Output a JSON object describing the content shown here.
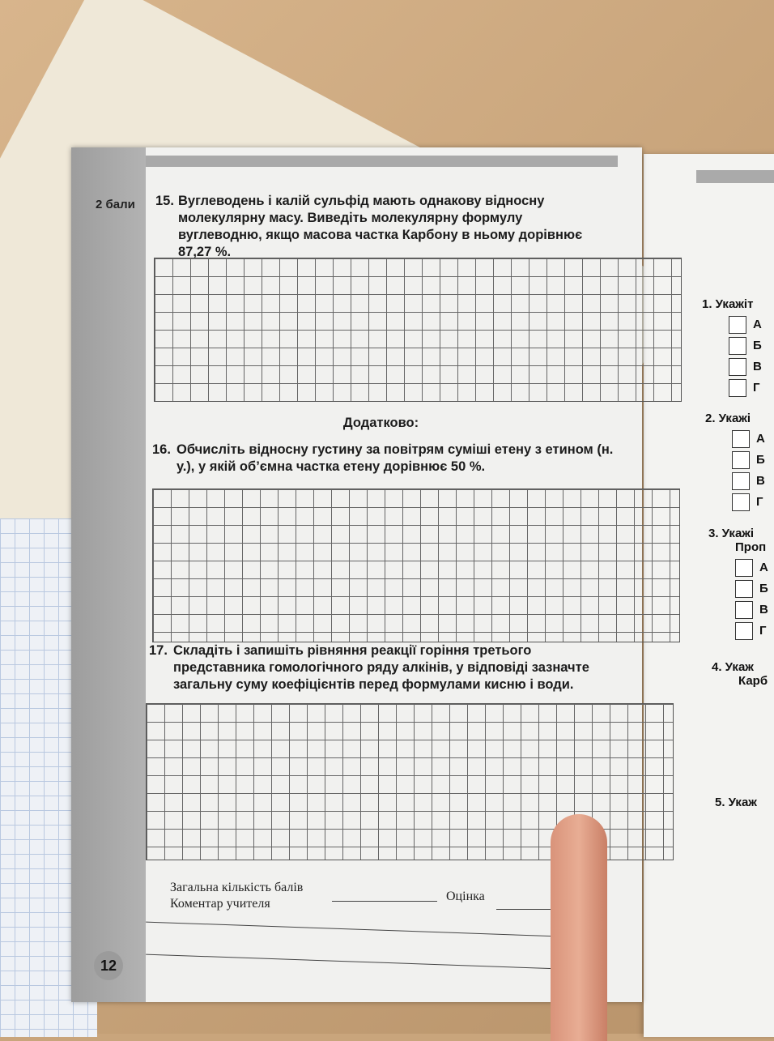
{
  "page": {
    "points_label": "2 бали",
    "q15": {
      "number": "15.",
      "text": "Вуглеводень і калій сульфід мають однакову відносну молекулярну масу. Виведіть молекулярну формулу вуглеводню, якщо масова частка Карбону в ньому дорівнює 87,27 %."
    },
    "extra_heading": "Додатково:",
    "q16": {
      "number": "16.",
      "text": "Обчисліть відносну густину за повітрям суміші етену з етином (н. у.), у якій об’ємна частка етену дорівнює 50 %."
    },
    "q17": {
      "number": "17.",
      "text": "Складіть і запишіть рівняння реакції горіння третього представника гомологічного ряду алкінів, у відповіді зазначте загальну суму коефіцієнтів перед формулами кисню і води."
    },
    "footer": {
      "total_points": "Загальна кількість балів",
      "teacher_comment": "Коментар учителя",
      "grade": "Оцінка"
    },
    "page_number": "12"
  },
  "right_page": {
    "q1": {
      "label": "1. Укажіт",
      "options": [
        "А",
        "Б",
        "В",
        "Г"
      ]
    },
    "q2": {
      "label": "2. Укажі",
      "options": [
        "А",
        "Б",
        "В",
        "Г"
      ]
    },
    "q3": {
      "label": "3. Укажі",
      "sub": "Проп",
      "options": [
        "А",
        "Б",
        "В",
        "Г"
      ]
    },
    "q4": {
      "label": "4. Укаж",
      "sub": "Карб"
    },
    "q5": {
      "label": "5. Укаж"
    }
  }
}
